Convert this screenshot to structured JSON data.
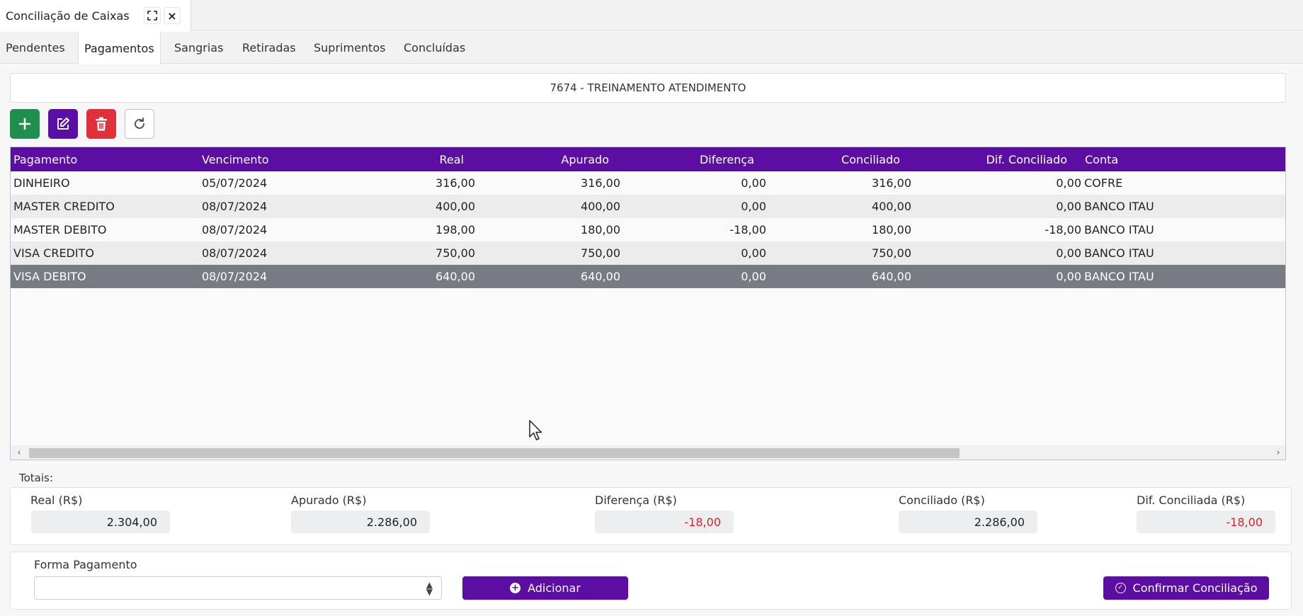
{
  "window": {
    "title": "Conciliação de Caixas",
    "expand_icon": "expand-icon",
    "close_label": "×"
  },
  "tabs": [
    {
      "label": "Pendentes"
    },
    {
      "label": "Pagamentos"
    },
    {
      "label": "Sangrias"
    },
    {
      "label": "Retiradas"
    },
    {
      "label": "Suprimentos"
    },
    {
      "label": "Concluídas"
    }
  ],
  "active_tab": "Pagamentos",
  "store": {
    "title": "7674 - TREINAMENTO ATENDIMENTO"
  },
  "toolbar": {
    "add_icon": "plus-icon",
    "edit_icon": "edit-icon",
    "delete_icon": "trash-icon",
    "refresh_icon": "refresh-icon"
  },
  "grid": {
    "columns": [
      "Pagamento",
      "Vencimento",
      "Real",
      "Apurado",
      "Diferença",
      "Conciliado",
      "Dif. Conciliado",
      "Conta"
    ],
    "rows": [
      {
        "pagamento": "DINHEIRO",
        "vencimento": "05/07/2024",
        "real": "316,00",
        "apurado": "316,00",
        "diferenca": "0,00",
        "conciliado": "316,00",
        "dif_conciliado": "0,00",
        "conta": "COFRE"
      },
      {
        "pagamento": "MASTER CREDITO",
        "vencimento": "08/07/2024",
        "real": "400,00",
        "apurado": "400,00",
        "diferenca": "0,00",
        "conciliado": "400,00",
        "dif_conciliado": "0,00",
        "conta": "BANCO ITAU"
      },
      {
        "pagamento": "MASTER DEBITO",
        "vencimento": "08/07/2024",
        "real": "198,00",
        "apurado": "180,00",
        "diferenca": "-18,00",
        "conciliado": "180,00",
        "dif_conciliado": "-18,00",
        "conta": "BANCO ITAU"
      },
      {
        "pagamento": "VISA CREDITO",
        "vencimento": "08/07/2024",
        "real": "750,00",
        "apurado": "750,00",
        "diferenca": "0,00",
        "conciliado": "750,00",
        "dif_conciliado": "0,00",
        "conta": "BANCO ITAU"
      },
      {
        "pagamento": "VISA DEBITO",
        "vencimento": "08/07/2024",
        "real": "640,00",
        "apurado": "640,00",
        "diferenca": "0,00",
        "conciliado": "640,00",
        "dif_conciliado": "0,00",
        "conta": "BANCO ITAU"
      }
    ],
    "selected_row": 4
  },
  "totals": {
    "label": "Totais:",
    "real_label": "Real (R$)",
    "real_value": "2.304,00",
    "apurado_label": "Apurado (R$)",
    "apurado_value": "2.286,00",
    "diferenca_label": "Diferença (R$)",
    "diferenca_value": "-18,00",
    "conciliado_label": "Conciliado (R$)",
    "conciliado_value": "2.286,00",
    "dif_conciliada_label": "Dif. Conciliada (R$)",
    "dif_conciliada_value": "-18,00"
  },
  "form": {
    "forma_label": "Forma Pagamento",
    "forma_value": "",
    "add_label": "Adicionar",
    "confirm_label": "Confirmar Conciliação"
  },
  "colors": {
    "primary": "#5b0ea1",
    "success": "#1e8f4c",
    "danger": "#e0303b",
    "negative_text": "#d9232d",
    "selected_row": "#787c82"
  }
}
